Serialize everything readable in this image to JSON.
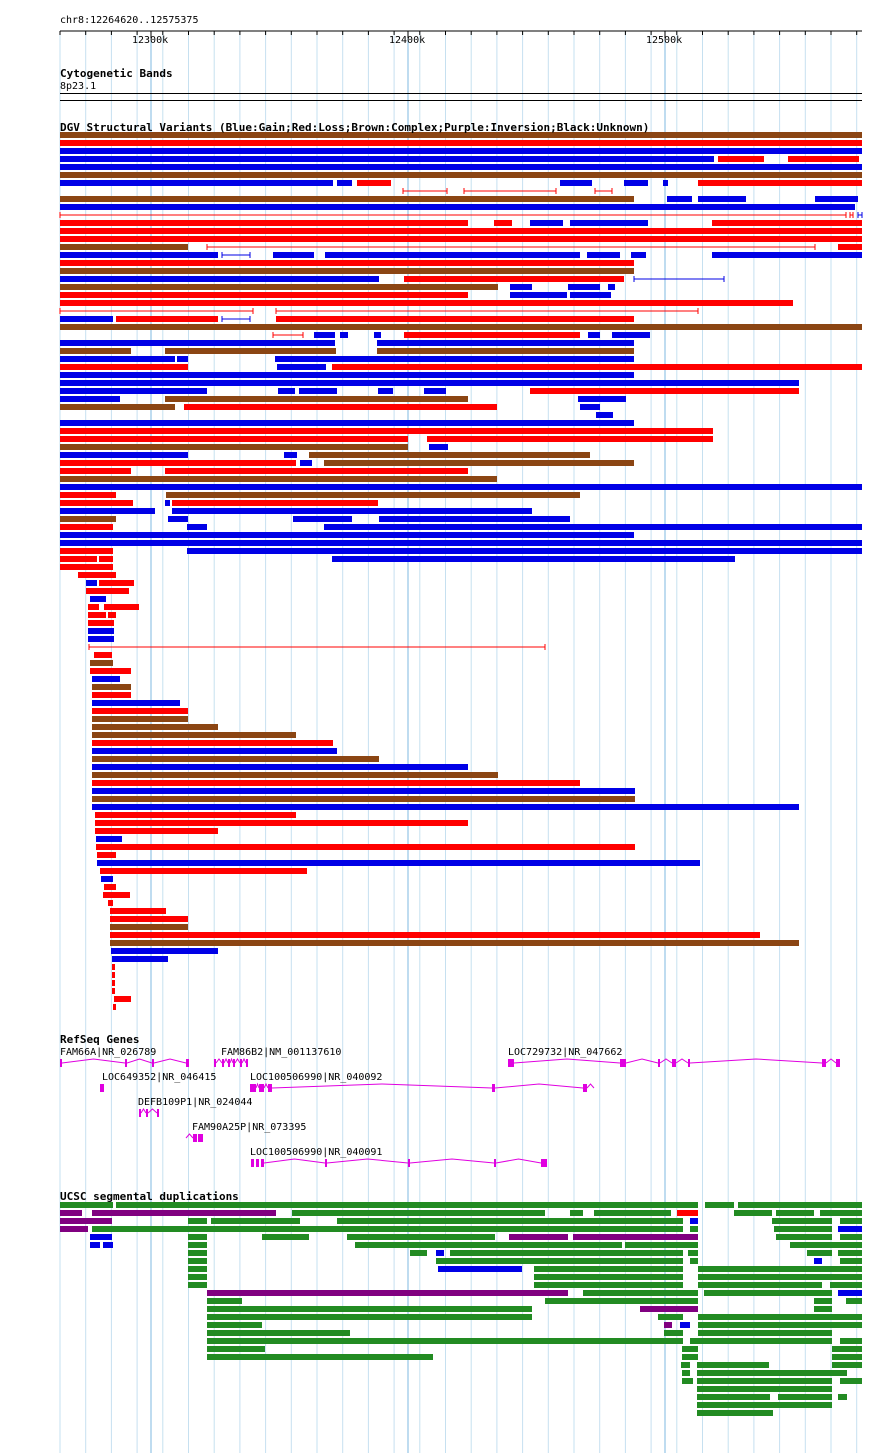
{
  "location": "chr8:12264620..12575375",
  "ruler": {
    "ticks": [
      "12300k",
      "12400k",
      "12500k"
    ]
  },
  "cytoband": {
    "title": "Cytogenetic Bands",
    "band": "8p23.1"
  },
  "dgv": {
    "title": "DGV Structural Variants (Blue:Gain;Red:Loss;Brown:Complex;Purple:Inversion;Black:Unknown)",
    "colors": {
      "gain": "#0000e6",
      "loss": "#ff0000",
      "complex": "#8b4513",
      "inversion": "#800080",
      "unknown": "#000000"
    }
  },
  "refseq": {
    "title": "RefSeq Genes",
    "color": "#e000e0",
    "genes": [
      {
        "label": "FAM66A|NR_026789"
      },
      {
        "label": "FAM86B2|NM_001137610"
      },
      {
        "label": "LOC729732|NR_047662"
      },
      {
        "label": "LOC649352|NR_046415"
      },
      {
        "label": "LOC100506990|NR_040092"
      },
      {
        "label": "DEFB109P1|NR_024044"
      },
      {
        "label": "FAM90A25P|NR_073395"
      },
      {
        "label": "LOC100506990|NR_040091"
      }
    ]
  },
  "segdup": {
    "title": "UCSC segmental duplications",
    "colors": {
      "green": "#228b22",
      "purple": "#800080",
      "blue": "#0000e6",
      "red": "#ff0000"
    }
  }
}
